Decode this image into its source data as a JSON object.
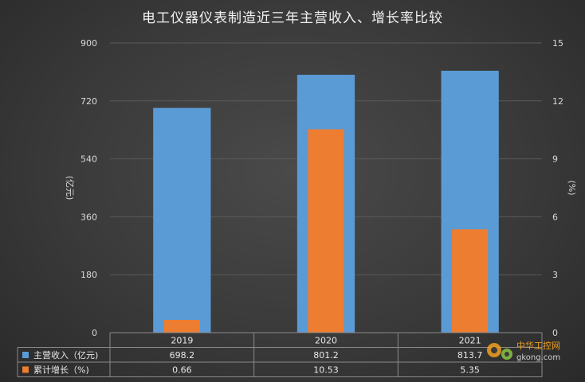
{
  "title": "电工仪器仪表制造近三年主营收入、增长率比较",
  "chart_data": {
    "type": "bar",
    "title": "电工仪器仪表制造近三年主营收入、增长率比较",
    "categories": [
      "2019",
      "2020",
      "2021"
    ],
    "series": [
      {
        "name": "主营收入（亿元)",
        "values": [
          698.2,
          801.2,
          813.7
        ],
        "axis": "left",
        "color": "#5b9bd5"
      },
      {
        "name": "累计增长（%)",
        "values": [
          0.66,
          10.53,
          5.35
        ],
        "axis": "right",
        "color": "#ed7d31"
      }
    ],
    "y_left": {
      "label": "(亿元)",
      "ticks": [
        "0",
        "180",
        "360",
        "540",
        "720",
        "900"
      ],
      "range": [
        0,
        900
      ]
    },
    "y_right": {
      "label": "(%)",
      "ticks": [
        "0",
        "3",
        "6",
        "9",
        "12",
        "15"
      ],
      "range": [
        0,
        15
      ]
    },
    "data_table": {
      "rows": [
        {
          "label": "主营收入（亿元)",
          "cells": [
            "698.2",
            "801.2",
            "813.7"
          ]
        },
        {
          "label": "累计增长（%)",
          "cells": [
            "0.66",
            "10.53",
            "5.35"
          ]
        }
      ]
    },
    "grid": true,
    "legend": "table"
  },
  "watermark": {
    "line1": "中华工控网",
    "line2": "gkong.com"
  }
}
